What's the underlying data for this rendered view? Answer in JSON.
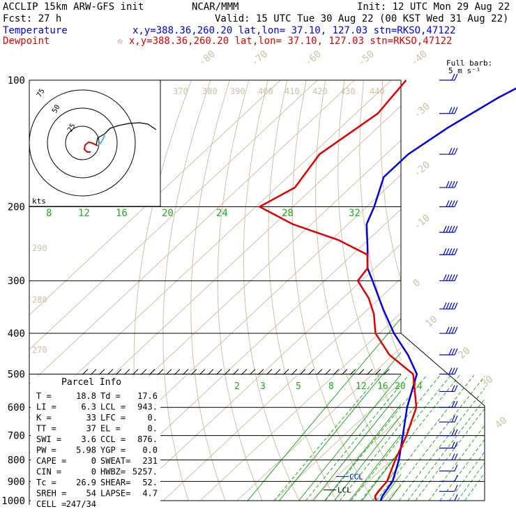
{
  "header": {
    "line1_left": "ACCLIP 15km ARW-GFS init",
    "line1_center": "NCAR/MMM",
    "line1_right": "Init: 12 UTC Mon 29 Aug 22",
    "line2_left": "Fcst:   27 h",
    "line2_right": "Valid: 15 UTC Tue 30 Aug 22 (00 KST Wed 31 Aug 22)",
    "temperature_label": "Temperature",
    "temperature_info": "x,y=388.36,260.20   lat,lon= 37.10, 127.03  stn=RKSO,47122",
    "dewpoint_label": "Dewpoint",
    "dewpoint_info": "☆ x,y=388.36,260.20   lat,lon= 37.10, 127.03  stn=RKSO,47122",
    "barb_note1": "Full barb:",
    "barb_note2": "5 m s⁻¹"
  },
  "colors": {
    "temperature": "#0000e0",
    "dewpoint": "#e00000",
    "isotherm": "#d2bfa4",
    "mixing_ratio": "#22aa22",
    "isobar": "#000000",
    "barb": "#0000cc"
  },
  "chart_data": {
    "type": "skew-T log-P sounding",
    "pressure_levels": [
      100,
      200,
      300,
      400,
      500,
      600,
      700,
      800,
      900,
      1000
    ],
    "isotherm_labels": [
      "-80",
      "-70",
      "-60",
      "-50",
      "-40",
      "-30",
      "-20",
      "-10",
      "0",
      "10",
      "20",
      "30",
      "40"
    ],
    "theta_labels": [
      "370",
      "380",
      "390",
      "400",
      "410",
      "420",
      "430",
      "440",
      "290",
      "280",
      "270"
    ],
    "mixing_ratio_labels_upper": [
      "8",
      "12",
      "16",
      "20",
      "24",
      "28",
      "32"
    ],
    "mixing_ratio_labels_lower": [
      "2",
      "3",
      "5",
      "8",
      "12",
      "16",
      "20",
      "24"
    ],
    "temperature": {
      "name": "Temperature",
      "p": [
        100,
        110,
        130,
        150,
        170,
        200,
        220,
        250,
        280,
        300,
        350,
        400,
        450,
        500,
        600,
        700,
        800,
        900,
        950,
        975,
        1000
      ],
      "t": [
        -62,
        -66,
        -71,
        -74,
        -74,
        -68,
        -65,
        -58,
        -52,
        -47,
        -36,
        -26,
        -16,
        -8,
        -1,
        6,
        12,
        16.5,
        17.5,
        18,
        18.8
      ]
    },
    "dewpoint": {
      "name": "Dewpoint",
      "p": [
        100,
        120,
        150,
        180,
        200,
        220,
        240,
        260,
        280,
        300,
        330,
        360,
        400,
        450,
        500,
        600,
        700,
        800,
        900,
        950,
        975,
        1000
      ],
      "td": [
        -96,
        -94,
        -98,
        -95,
        -99,
        -85,
        -68,
        -56,
        -52,
        -51,
        -43,
        -37,
        -31,
        -21,
        -9,
        1.5,
        7,
        11,
        15,
        15.5,
        16,
        17.6
      ]
    },
    "ccl_label": "CCL",
    "lcl_label": "LCL",
    "hodograph": {
      "rings": [
        "25",
        "50",
        "75"
      ],
      "units": "kts"
    },
    "wind_barbs": {
      "p": [
        100,
        120,
        150,
        180,
        200,
        230,
        260,
        300,
        350,
        400,
        450,
        500,
        550,
        600,
        650,
        700,
        750,
        800,
        850,
        900,
        950,
        1000
      ],
      "speed_ms": [
        10,
        15,
        15,
        20,
        20,
        25,
        25,
        25,
        25,
        20,
        15,
        15,
        10,
        10,
        10,
        10,
        10,
        10,
        5,
        5,
        5,
        5
      ]
    }
  },
  "parcel_info": {
    "title": "Parcel Info",
    "rows": [
      [
        "T  =",
        "18.8",
        "Td =",
        "17.6"
      ],
      [
        "LI =",
        "6.3",
        "LCL =",
        "943."
      ],
      [
        "K  =",
        "33",
        "LFC =",
        "0."
      ],
      [
        "TT =",
        "37",
        "EL  =",
        "0."
      ],
      [
        "SWI =",
        "3.6",
        "CCL =",
        "876."
      ],
      [
        "PW =",
        "5.98",
        "YGP =",
        "0.0"
      ],
      [
        "CAPE =",
        "0",
        "SWEAT=",
        "231"
      ],
      [
        "CIN =",
        "0",
        "HWBZ=",
        "5257."
      ],
      [
        "Tc =",
        "26.9",
        "SHEAR=",
        "52."
      ],
      [
        "SREH =",
        "54",
        "LAPSE=",
        "4.7"
      ],
      [
        "CELL =",
        "247/34",
        "",
        ""
      ]
    ]
  }
}
